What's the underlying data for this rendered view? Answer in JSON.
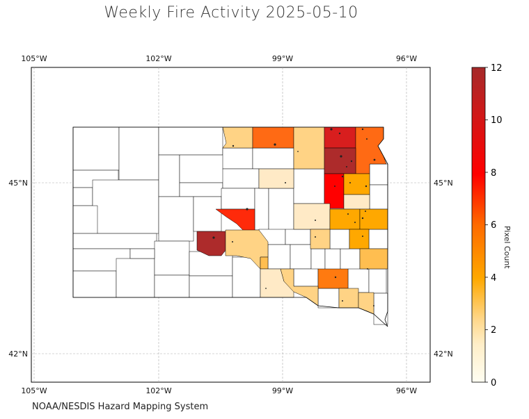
{
  "title": "Weekly Fire Activity 2025-05-10",
  "source": "NOAA/NESDIS Hazard Mapping System",
  "map": {
    "lon_ticks": [
      "105°W",
      "102°W",
      "99°W",
      "96°W"
    ],
    "lat_ticks": [
      "45°N",
      "42°N"
    ],
    "lon_range": [
      -105.1,
      -95.5
    ],
    "lat_range": [
      41.5,
      47.05
    ],
    "gridlines": true,
    "region": "South Dakota counties"
  },
  "colorbar": {
    "label": "Pixel Count",
    "min": 0,
    "max": 12,
    "ticks": [
      "0",
      "2",
      "4",
      "6",
      "8",
      "10",
      "12"
    ],
    "stops": [
      "#fffef2",
      "#ffe5b4",
      "#ffd27f",
      "#ffa800",
      "#ff7000",
      "#ff1400",
      "#e02020",
      "#a52a2a"
    ]
  },
  "legend": {
    "low": "0",
    "high": "12"
  }
}
